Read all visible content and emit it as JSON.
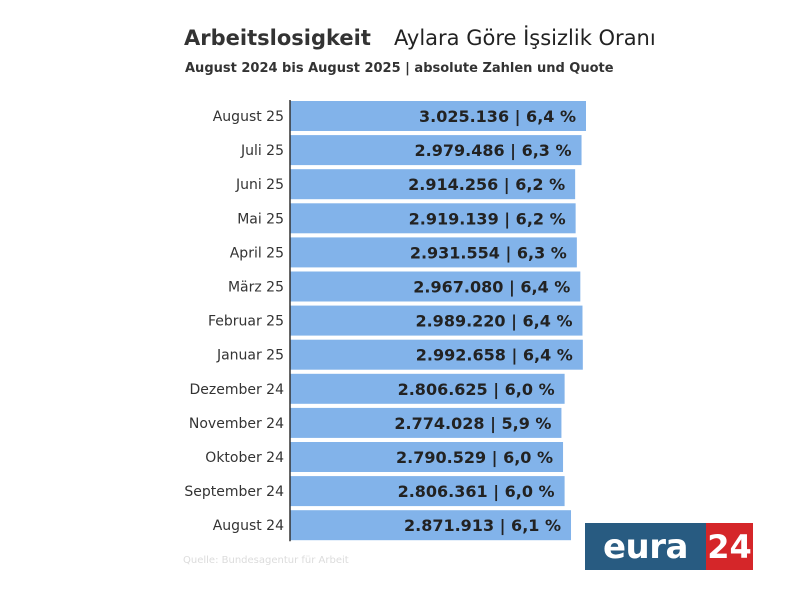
{
  "header": {
    "title_de": "Arbeitslosigkeit",
    "title_tr": "Aylara Göre İşsizlik Oranı",
    "subtitle": "August 2024 bis August 2025 | absolute Zahlen und Quote"
  },
  "source_text": "Quelle: Bundesagentur für Arbeit",
  "logo": {
    "left": "eura",
    "right": "24"
  },
  "chart_data": {
    "type": "bar",
    "orientation": "horizontal",
    "bar_color": "#82b3ea",
    "label_color": "#222222",
    "categories": [
      "August 25",
      "Juli 25",
      "Juni 25",
      "Mai 25",
      "April 25",
      "März 25",
      "Februar 25",
      "Januar 25",
      "Dezember 24",
      "November 24",
      "Oktober 24",
      "September 24",
      "August 24"
    ],
    "values": [
      3025136,
      2979486,
      2914256,
      2919139,
      2931554,
      2967080,
      2989220,
      2992658,
      2806625,
      2774028,
      2790529,
      2806361,
      2871913
    ],
    "rates": [
      6.4,
      6.3,
      6.2,
      6.2,
      6.3,
      6.4,
      6.4,
      6.4,
      6.0,
      5.9,
      6.0,
      6.0,
      6.1
    ],
    "labels": [
      "3.025.136 | 6,4 %",
      "2.979.486 | 6,3 %",
      "2.914.256 | 6,2 %",
      "2.919.139 | 6,2 %",
      "2.931.554 | 6,3 %",
      "2.967.080 | 6,4 %",
      "2.989.220 | 6,4 %",
      "2.992.658 | 6,4 %",
      "2.806.625 | 6,0 %",
      "2.774.028 | 5,9 %",
      "2.790.529 | 6,0 %",
      "2.806.361 | 6,0 %",
      "2.871.913 | 6,1 %"
    ],
    "xlim": [
      0,
      3025136
    ],
    "grid": false,
    "legend": "none"
  }
}
